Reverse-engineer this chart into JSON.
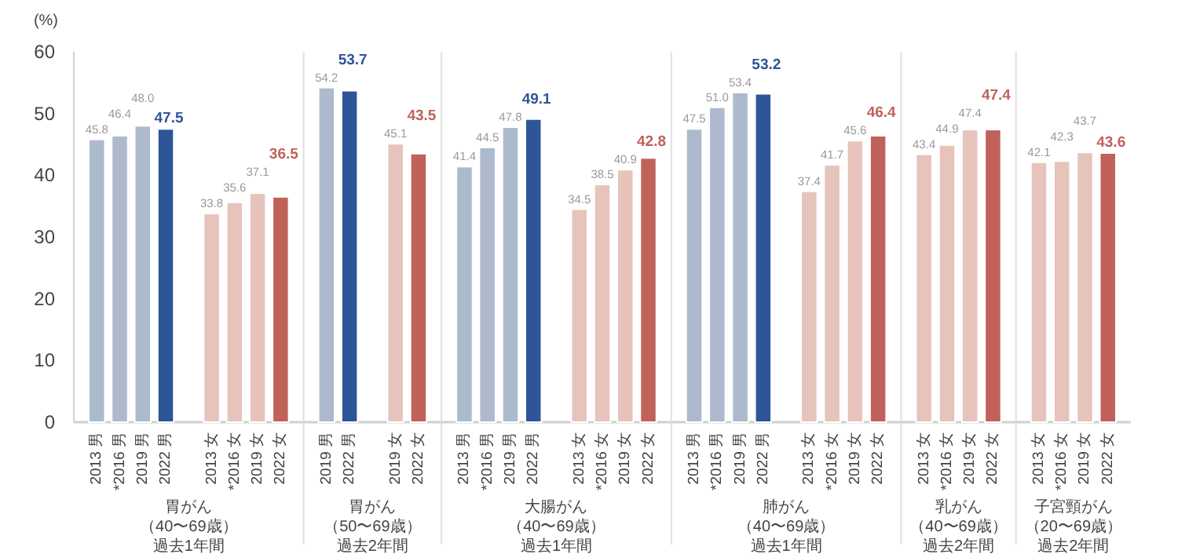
{
  "chart_data": [
    {
      "type": "bar",
      "ylabel": "(%)",
      "xlabel": "胃がん（40〜69歳）過去1年間",
      "ylim": [
        0,
        60
      ],
      "yticks": [
        0,
        10,
        20,
        30,
        40,
        50,
        60
      ],
      "categories": [
        "2013 男",
        "*2016 男",
        "2019 男",
        "2022 男",
        null,
        "2013 女",
        "*2016 女",
        "2019 女",
        "2022 女"
      ],
      "values": [
        45.8,
        46.4,
        48.0,
        47.5,
        null,
        33.8,
        35.6,
        37.1,
        36.5
      ],
      "value_labels": [
        "45.8",
        "46.4",
        "48.0",
        "47.5",
        null,
        "33.8",
        "35.6",
        "37.1",
        "36.5"
      ],
      "colors": [
        "#adb9cc",
        "#adb9cc",
        "#adb9cc",
        "#2e5597",
        null,
        "#e6c4bb",
        "#e6c4bb",
        "#e6c4bb",
        "#c0625a"
      ]
    },
    {
      "type": "bar",
      "xlabel": "胃がん（50〜69歳）過去2年間",
      "ylim": [
        0,
        60
      ],
      "tick_labels": "x",
      "categories": [
        "2019 男",
        "2022 男",
        null,
        "2019 女",
        "2022 女"
      ],
      "values": [
        54.2,
        53.7,
        null,
        45.1,
        43.5
      ],
      "value_labels": [
        "54.2",
        "53.7",
        null,
        "45.1",
        "43.5"
      ],
      "colors": [
        "#adb9cc",
        "#2e5597",
        null,
        "#e6c4bb",
        "#c0625a"
      ]
    },
    {
      "type": "bar",
      "xlabel": "大腸がん（40〜69歳）過去1年間",
      "ylim": [
        0,
        60
      ],
      "tick_labels": "x",
      "categories": [
        "2013 男",
        "*2016 男",
        "2019 男",
        "2022 男",
        null,
        "2013 女",
        "*2016 女",
        "2019 女",
        "2022 女"
      ],
      "values": [
        41.4,
        44.5,
        47.8,
        49.1,
        null,
        34.5,
        38.5,
        40.9,
        42.8
      ],
      "value_labels": [
        "41.4",
        "44.5",
        "47.8",
        "49.1",
        null,
        "34.5",
        "38.5",
        "40.9",
        "42.8"
      ],
      "colors": [
        "#adb9cc",
        "#adb9cc",
        "#adb9cc",
        "#2e5597",
        null,
        "#e6c4bb",
        "#e6c4bb",
        "#e6c4bb",
        "#c0625a"
      ]
    },
    {
      "type": "bar",
      "xlabel": "肺がん（40〜69歳）過去1年間",
      "ylim": [
        0,
        60
      ],
      "tick_labels": "x",
      "categories": [
        "2013 男",
        "*2016 男",
        "2019 男",
        "2022 男",
        null,
        "2013 女",
        "*2016 女",
        "2019 女",
        "2022 女"
      ],
      "values": [
        47.5,
        51.0,
        53.4,
        53.2,
        null,
        37.4,
        41.7,
        45.6,
        46.4
      ],
      "value_labels": [
        "47.5",
        "51.0",
        "53.4",
        "53.2",
        null,
        "37.4",
        "41.7",
        "45.6",
        "46.4"
      ],
      "colors": [
        "#adb9cc",
        "#adb9cc",
        "#adb9cc",
        "#2e5597",
        null,
        "#e6c4bb",
        "#e6c4bb",
        "#e6c4bb",
        "#c0625a"
      ]
    },
    {
      "type": "bar",
      "xlabel": "乳がん（40〜69歳）過去2年間",
      "ylim": [
        0,
        60
      ],
      "tick_labels": "x",
      "categories": [
        "2013 女",
        "*2016 女",
        "2019 女",
        "2022 女"
      ],
      "values": [
        43.4,
        44.9,
        47.4,
        47.4
      ],
      "value_labels": [
        "43.4",
        "44.9",
        "47.4",
        "47.4"
      ],
      "colors": [
        "#e6c4bb",
        "#e6c4bb",
        "#e6c4bb",
        "#c0625a"
      ]
    },
    {
      "type": "bar",
      "xlabel": "子宮頸がん（20〜69歳）過去2年間",
      "ylim": [
        0,
        60
      ],
      "tick_labels": "x",
      "categories": [
        "2013 女",
        "*2016 女",
        "2019 女",
        "2022 女"
      ],
      "values": [
        42.1,
        42.3,
        43.7,
        43.6
      ],
      "value_labels": [
        "42.1",
        "42.3",
        "43.7",
        "43.6"
      ],
      "colors": [
        "#e6c4bb",
        "#e6c4bb",
        "#e6c4bb",
        "#c0625a"
      ]
    }
  ]
}
